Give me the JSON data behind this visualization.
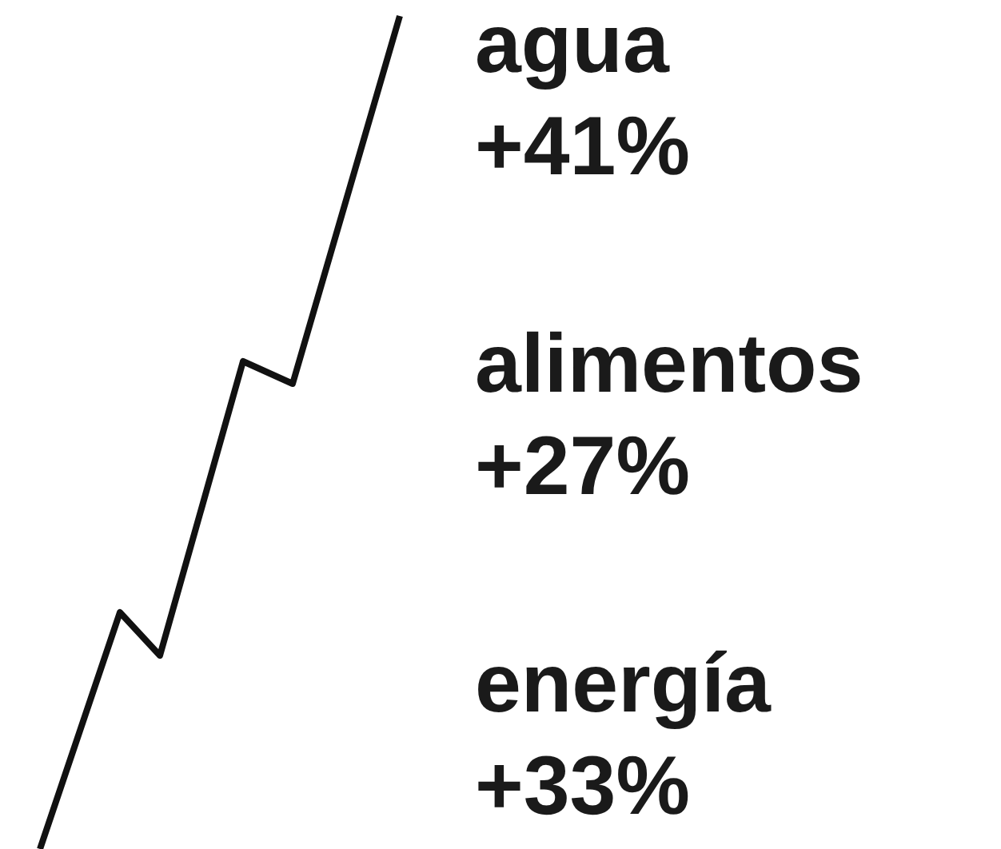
{
  "chart_data": {
    "type": "other",
    "categories": [
      "agua",
      "alimentos",
      "energía"
    ],
    "values": [
      41,
      27,
      33
    ],
    "value_labels": [
      "+41%",
      "+27%",
      "+33%"
    ]
  }
}
